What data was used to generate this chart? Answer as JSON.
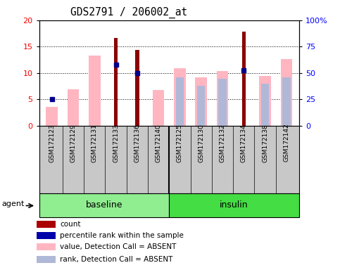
{
  "title": "GDS2791 / 206002_at",
  "samples": [
    "GSM172123",
    "GSM172129",
    "GSM172131",
    "GSM172133",
    "GSM172136",
    "GSM172140",
    "GSM172125",
    "GSM172130",
    "GSM172132",
    "GSM172134",
    "GSM172138",
    "GSM172142"
  ],
  "red_bars": [
    0,
    0,
    0,
    16.6,
    14.4,
    0,
    0,
    0,
    0,
    17.9,
    0,
    0
  ],
  "blue_dots": [
    5.0,
    0,
    0,
    11.5,
    10.0,
    0,
    0,
    0,
    0,
    10.5,
    0,
    0
  ],
  "pink_bars": [
    3.5,
    6.9,
    13.3,
    0,
    0,
    6.7,
    10.9,
    9.1,
    10.4,
    0,
    9.4,
    12.6
  ],
  "lavender_bars": [
    0,
    0,
    0,
    0,
    0,
    0,
    9.1,
    7.6,
    8.9,
    0,
    8.0,
    9.2
  ],
  "ylim_left": [
    0,
    20
  ],
  "ylim_right": [
    0,
    100
  ],
  "yticks_left": [
    0,
    5,
    10,
    15,
    20
  ],
  "yticks_right": [
    0,
    25,
    50,
    75,
    100
  ],
  "ytick_labels_right": [
    "0",
    "25",
    "50",
    "75",
    "100%"
  ],
  "red_color": "#8B0000",
  "blue_color": "#00008B",
  "pink_color": "#FFB6C1",
  "lavender_color": "#B0B8D8",
  "bg_plot": "#FFFFFF",
  "bg_xaxis": "#C8C8C8",
  "baseline_color": "#90EE90",
  "insulin_color": "#44DD44",
  "legend_items": [
    {
      "color": "#AA0000",
      "label": "count"
    },
    {
      "color": "#0000AA",
      "label": "percentile rank within the sample"
    },
    {
      "color": "#FFB6C1",
      "label": "value, Detection Call = ABSENT"
    },
    {
      "color": "#B0B8D8",
      "label": "rank, Detection Call = ABSENT"
    }
  ]
}
